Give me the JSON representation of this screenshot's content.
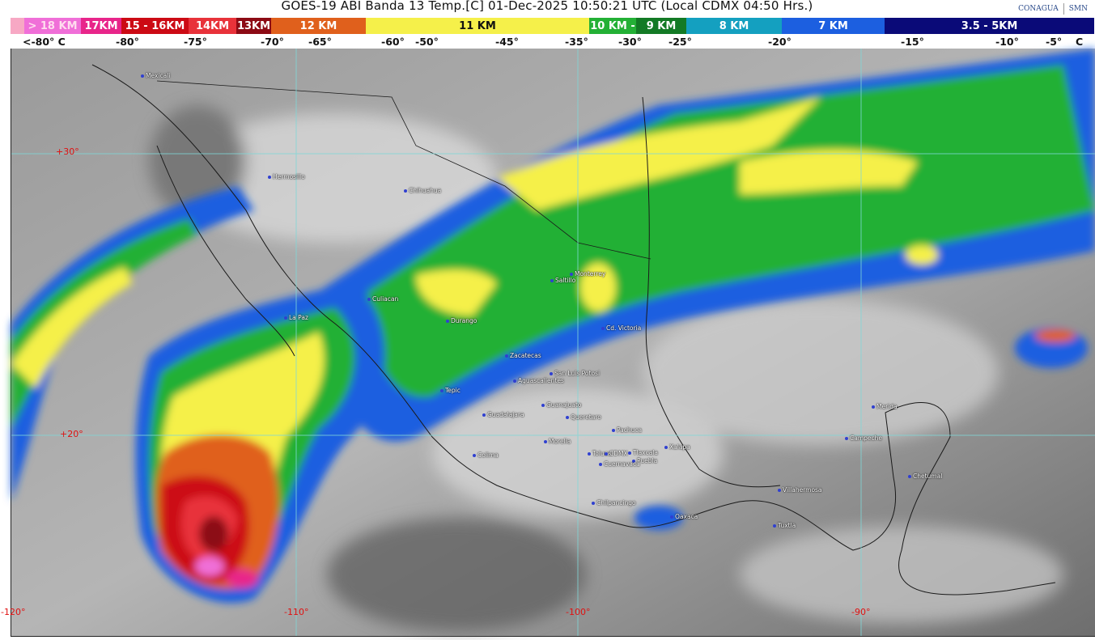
{
  "title": "GOES-19 ABI Banda 13 Temp.[C] 01-Dec-2025 10:50:21 UTC (Local CDMX  04:50 Hrs.)",
  "logos": {
    "conagua": "CONAGUA",
    "smn": "SMN"
  },
  "legend": [
    {
      "label": "",
      "color": "#f7a8c4"
    },
    {
      "label": "> 18 KM",
      "color": "#f06fd8"
    },
    {
      "label": "17KM",
      "color": "#e8258a"
    },
    {
      "label": "15 - 16KM",
      "color": "#cc0a14"
    },
    {
      "label": "14KM",
      "color": "#e8323a"
    },
    {
      "label": "13KM",
      "color": "#8c0a14"
    },
    {
      "label": "12 KM",
      "color": "#e0601c"
    },
    {
      "label": "11 KM",
      "color": "#f5f04a"
    },
    {
      "label": "10 KM -",
      "color": "#23b035"
    },
    {
      "label": "9 KM",
      "color": "#137a25"
    },
    {
      "label": "8 KM",
      "color": "#14a0c0"
    },
    {
      "label": "7 KM",
      "color": "#1c5fe0"
    },
    {
      "label": "3.5 - 5KM",
      "color": "#0a0a78"
    }
  ],
  "temperatures": [
    "<-80° C",
    "-80°",
    "-75°",
    "-70°",
    "-65°",
    "-60°",
    "-50°",
    "-45°",
    "-35°",
    "-30°",
    "-25°",
    "-20°",
    "-15°",
    "-10°",
    "-5°",
    "C"
  ],
  "grid_labels": {
    "lat": [
      "+30°",
      "+20°"
    ],
    "lon": [
      "-120°",
      "-110°",
      "-100°",
      "-90°"
    ]
  },
  "cities": [
    "Mexicali",
    "Hermosillo",
    "Chihuahua",
    "La Paz",
    "Culiacan",
    "Durango",
    "Saltillo",
    "Monterrey",
    "Cd. Victoria",
    "Zacatecas",
    "San Luis Potosi",
    "Aguascalientes",
    "Guanajuato",
    "Queretaro",
    "Guadalajara",
    "Tepic",
    "Pachuca",
    "Morelia",
    "Colima",
    "Toluca",
    "CDMX",
    "Tlaxcala",
    "Puebla",
    "Cuernavaca",
    "Xalapa",
    "Chilpancingo",
    "Oaxaca",
    "Villahermosa",
    "Tuxtla",
    "Merida",
    "Campeche",
    "Chetumal"
  ]
}
